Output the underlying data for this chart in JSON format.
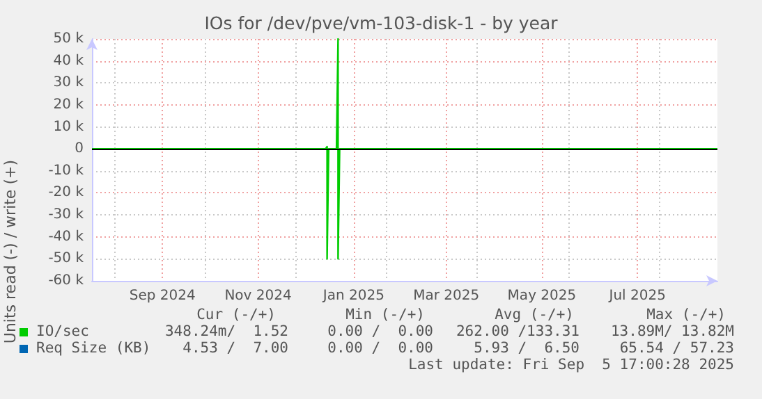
{
  "chart_data": {
    "type": "line",
    "title": "IOs for /dev/pve/vm-103-disk-1 - by year",
    "ylabel": "Units read (-) / write (+)",
    "series": [
      {
        "name": "IO/sec",
        "color": "#00cc00",
        "x": [
          "2024-07-18",
          "2024-12-14",
          "2024-12-15",
          "2024-12-15",
          "2024-12-16",
          "2024-12-21",
          "2024-12-22",
          "2024-12-22",
          "2024-12-23",
          "2025-08-21"
        ],
        "values": [
          0,
          0,
          1000,
          -50000,
          0,
          0,
          50000,
          -50000,
          0,
          0
        ]
      },
      {
        "name": "Req Size (KB)",
        "color": "#0066b3"
      }
    ],
    "xlim": [
      "2024-07-18",
      "2025-08-21"
    ],
    "xticks": [
      {
        "value": "2024-09-01",
        "label": "Sep 2024"
      },
      {
        "value": "2024-11-01",
        "label": "Nov 2024"
      },
      {
        "value": "2025-01-01",
        "label": "Jan 2025"
      },
      {
        "value": "2025-03-01",
        "label": "Mar 2025"
      },
      {
        "value": "2025-05-01",
        "label": "May 2025"
      },
      {
        "value": "2025-07-01",
        "label": "Jul 2025"
      }
    ],
    "ylim": [
      -60000,
      50000
    ],
    "yticks": [
      {
        "value": -60000,
        "label": "-60 k"
      },
      {
        "value": -50000,
        "label": "-50 k"
      },
      {
        "value": -40000,
        "label": "-40 k"
      },
      {
        "value": -30000,
        "label": "-30 k"
      },
      {
        "value": -20000,
        "label": "-20 k"
      },
      {
        "value": -10000,
        "label": "-10 k"
      },
      0,
      {
        "value": 10000,
        "label": "10 k"
      },
      {
        "value": 20000,
        "label": "20 k"
      },
      {
        "value": 30000,
        "label": "30 k"
      },
      {
        "value": 40000,
        "label": "40 k"
      },
      {
        "value": 50000,
        "label": "50 k"
      }
    ],
    "ref_lines": [
      {
        "axis": "y",
        "value": 0,
        "color": "#000000"
      }
    ],
    "grid": true,
    "legend": "bottom",
    "annotations": [
      "Cur (-/+)",
      "Min (-/+)",
      "Avg (-/+)",
      "Max (-/+)",
      "348.24m/  1.52",
      "0.00 /  0.00",
      "262.00 /133.31",
      "13.89M/ 13.82M",
      "4.53 /  7.00",
      "0.00 /  0.00",
      "5.93 /  6.50",
      "65.54 / 57.23",
      "Last update: Fri Sep  5 17:00:28 2025"
    ]
  }
}
